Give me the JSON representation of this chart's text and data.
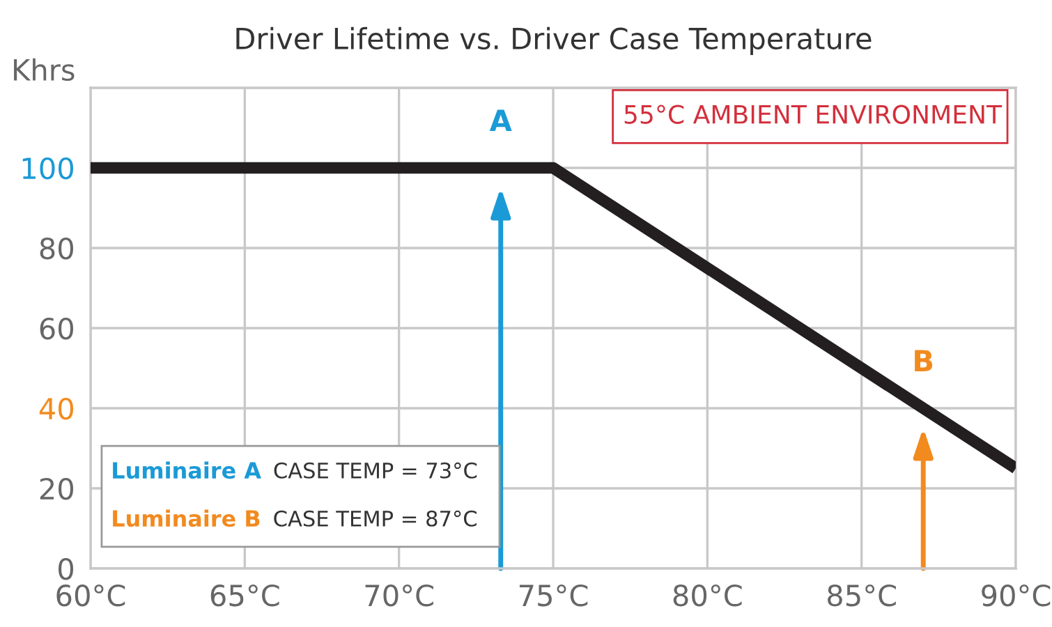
{
  "chart_data": {
    "type": "line",
    "title": "Driver Lifetime vs. Driver Case Temperature",
    "ylabel": "Khrs",
    "x": [
      60,
      75,
      90
    ],
    "series": [
      {
        "color": "#231f20",
        "values": [
          100,
          100,
          25
        ]
      }
    ],
    "xlim": [
      60,
      90
    ],
    "xticks": [
      {
        "value": 60,
        "label": "60°C"
      },
      {
        "value": 65,
        "label": "65°C"
      },
      {
        "value": 70,
        "label": "70°C"
      },
      {
        "value": 75,
        "label": "75°C"
      },
      {
        "value": 80,
        "label": "80°C"
      },
      {
        "value": 85,
        "label": "85°C"
      },
      {
        "value": 90,
        "label": "90°C"
      }
    ],
    "ylim": [
      0,
      120
    ],
    "yticks": [
      0,
      20,
      40,
      60,
      80,
      100,
      {
        "value": 120,
        "label": null
      }
    ],
    "grid": true,
    "marker": "none",
    "line_style": "solid",
    "annotations": [
      {
        "text": "A",
        "x": 73.3,
        "y": 100
      },
      {
        "text": "B",
        "x": 87,
        "y": 40
      },
      "55°C AMBIENT ENVIRONMENT",
      "Luminaire A",
      "CASE TEMP = 73°C",
      "Luminaire B",
      "CASE TEMP = 87°C"
    ]
  }
}
